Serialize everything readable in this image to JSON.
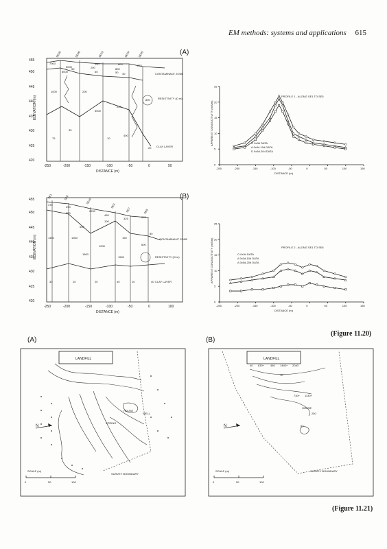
{
  "header": {
    "title": "EM methods: systems and applications",
    "page": "615"
  },
  "fig20": {
    "label_a": "(A)",
    "label_b": "(B)",
    "caption": "(Figure 11.20)",
    "sections": {
      "ylabel": "ELEVATION (m)",
      "xlabel": "DISTANCE (m)",
      "yticks": [
        "420",
        "425",
        "430",
        "435",
        "440",
        "445",
        "450",
        "455"
      ],
      "xticks": [
        "-250",
        "-200",
        "-150",
        "-100",
        "-50",
        "0",
        "50",
        "100"
      ],
      "contaminant": "CONTAMINANT ZONE",
      "resistivity": "RESISTIVITY (Ω m)",
      "clay": "CLAY LAYER",
      "a": {
        "stations": [
          "SE05",
          "SE06",
          "SE03",
          "SE04",
          "SE05"
        ],
        "values": [
          "7000",
          "5000",
          "150",
          "800",
          "275",
          "200",
          "50",
          "65",
          "40",
          "8000",
          "800",
          "50",
          "1000",
          "200",
          "800",
          "35",
          "5000",
          "250",
          "75",
          "10",
          "400",
          "20"
        ]
      },
      "b": {
        "stations": [
          "SE1",
          "SE8",
          "SE10",
          "SE9",
          "SE7",
          "SE6"
        ],
        "values": [
          "470",
          "290",
          "2200",
          "430",
          "325",
          "275",
          "850",
          "100",
          "80",
          "550",
          "150",
          "1450",
          "1300",
          "1000",
          "1800",
          "1500",
          "600",
          "30",
          "10",
          "20",
          "40",
          "10",
          "40"
        ]
      }
    },
    "profile1": {
      "title": "PROFILE 1 - ALONG SE1 TO SE5",
      "ylabel": "APPARENT CONDUCTIVITY (mS/m)",
      "xlabel": "DISTANCE (m)",
      "legend": [
        "O  0x3d DATA",
        "Δ  0x5d-10d DATA",
        "D  0x3d-20d DATA"
      ]
    },
    "profile2": {
      "title": "PROFILE 2 - ALONG SE1 TO SE6",
      "ylabel": "APPARENT CONDUCTIVITY (mS/m)",
      "xlabel": "DISTANCE (m)",
      "legend": [
        "O  0x3d DATA",
        "Δ  0x3d-10d DATA",
        "Δ  0x5d-20d DATA"
      ]
    }
  },
  "fig21": {
    "label_a": "(A)",
    "label_b": "(B)",
    "caption": "(Figure 11.21)",
    "landfill": "LANDFILL",
    "house": "HOUSE",
    "well": "WELL",
    "spring": "SPRING",
    "boundary": "SURVEY BOUNDARY",
    "scale": "SCALE (m)",
    "scale_ticks": [
      "0",
      "50",
      "100"
    ],
    "north": "N",
    "map_b_values": [
      "40",
      "830+",
      "460",
      "1440+",
      "2040",
      "10",
      "730+",
      "1130+",
      "63",
      "250"
    ]
  },
  "chart_data": [
    {
      "type": "line",
      "title": "PROFILE 1 - ALONG SE1 TO SE5",
      "xlabel": "DISTANCE (m)",
      "ylabel": "APPARENT CONDUCTIVITY (mS/m)",
      "xlim": [
        -250,
        150
      ],
      "ylim": [
        0,
        25
      ],
      "x": [
        -210,
        -180,
        -150,
        -130,
        -110,
        -95,
        -85,
        -75,
        -60,
        -45,
        -30,
        -10,
        10,
        40,
        70,
        100
      ],
      "series": [
        {
          "name": "0x3d DATA",
          "values": [
            6,
            7,
            10,
            13,
            17,
            20,
            22,
            20,
            16,
            12,
            10,
            9,
            8,
            7.5,
            7,
            6.5
          ]
        },
        {
          "name": "0x5d-10d DATA",
          "values": [
            5.5,
            6,
            9,
            12,
            15,
            19,
            21,
            19,
            14,
            10,
            9,
            8,
            7,
            6.5,
            6,
            5.5
          ]
        },
        {
          "name": "0x3d-20d DATA",
          "values": [
            5,
            5.5,
            8,
            11,
            14,
            17,
            19,
            17,
            13,
            9,
            8,
            7,
            6.5,
            6,
            5.5,
            5
          ]
        }
      ]
    },
    {
      "type": "line",
      "title": "PROFILE 2 - ALONG SE1 TO SE6",
      "xlabel": "DISTANCE (m)",
      "ylabel": "APPARENT CONDUCTIVITY (mS/m)",
      "xlim": [
        -250,
        150
      ],
      "ylim": [
        0,
        25
      ],
      "x": [
        -220,
        -190,
        -160,
        -130,
        -100,
        -80,
        -60,
        -40,
        -20,
        0,
        20,
        40,
        70,
        100
      ],
      "series": [
        {
          "name": "0x3d DATA",
          "values": [
            7,
            7.5,
            8,
            9,
            10,
            12,
            12.5,
            12,
            11,
            12,
            11.5,
            10,
            9,
            8
          ]
        },
        {
          "name": "0x3d-10d DATA",
          "values": [
            6,
            6.5,
            7,
            7.5,
            8,
            10,
            10.5,
            10,
            9,
            10,
            9.5,
            8,
            7.5,
            7
          ]
        },
        {
          "name": "0x5d-20d DATA",
          "values": [
            3.5,
            3.5,
            4,
            4,
            4.5,
            5,
            5.5,
            5.5,
            5,
            6,
            5.5,
            5,
            4.5,
            4
          ]
        }
      ]
    }
  ]
}
